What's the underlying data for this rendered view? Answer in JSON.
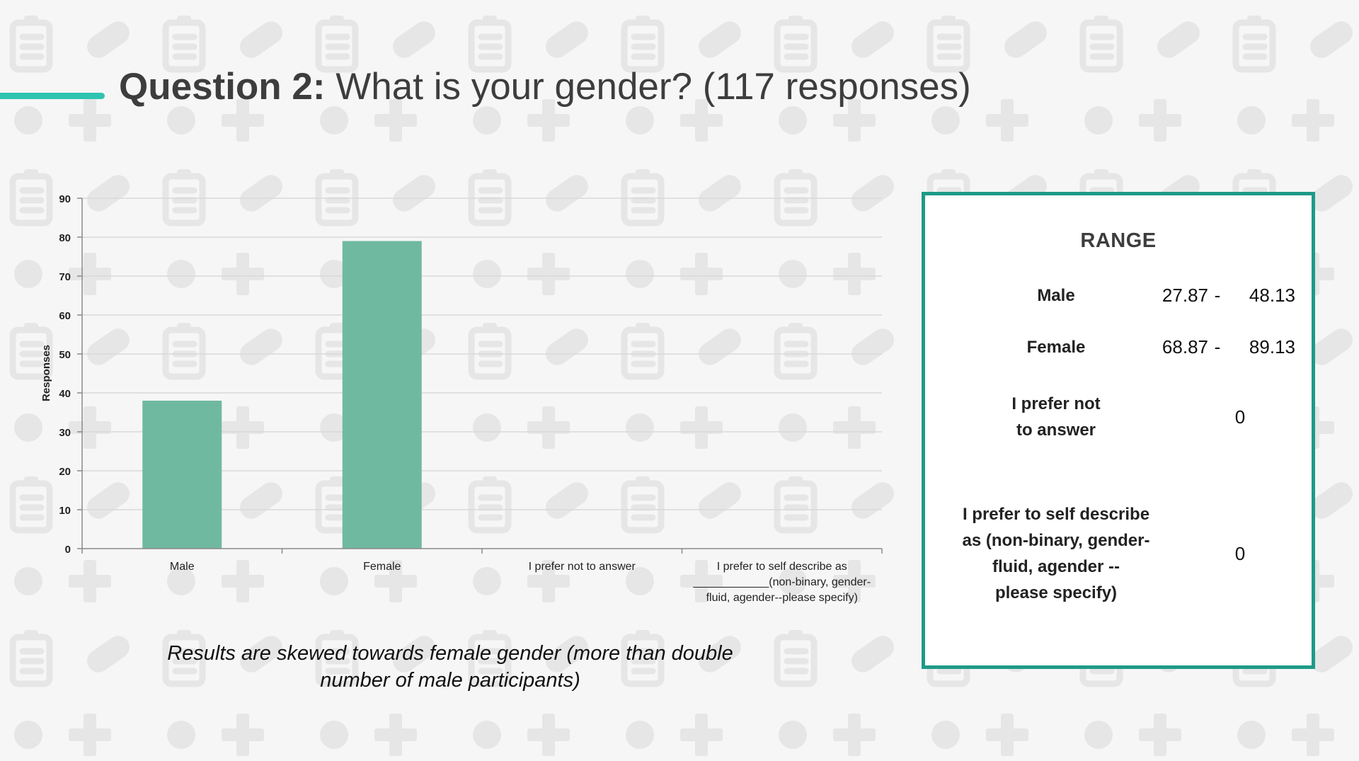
{
  "colors": {
    "accent": "#2ec4b0",
    "bar": "#70b9a1",
    "box_border": "#1e9a88",
    "pattern": "#e6e6e6"
  },
  "slide": {
    "title_label": "Question 2:",
    "title_text": "What is your gender? (117 responses)",
    "caption": "Results are skewed towards female gender (more than double number of male participants)"
  },
  "chart_data": {
    "type": "bar",
    "categories": [
      "Male",
      "Female",
      "I prefer not to answer",
      "I prefer to self describe as ____________(non-binary, gender-fluid, agender--please specify)"
    ],
    "category_lines": [
      [
        "Male"
      ],
      [
        "Female"
      ],
      [
        "I prefer not to answer"
      ],
      [
        "I prefer to self describe as",
        "____________(non-binary, gender-",
        "fluid, agender--please specify)"
      ]
    ],
    "values": [
      38,
      79,
      0,
      0
    ],
    "ylabel": "Responses",
    "ylim": [
      0,
      90
    ],
    "yticks": [
      0,
      10,
      20,
      30,
      40,
      50,
      60,
      70,
      80,
      90
    ],
    "grid": true
  },
  "range_box": {
    "title": "RANGE",
    "rows": [
      {
        "label_lines": [
          "Male"
        ],
        "min": "27.87",
        "dash": "-",
        "max": "48.13"
      },
      {
        "label_lines": [
          "Female"
        ],
        "min": "68.87",
        "dash": "-",
        "max": "89.13"
      },
      {
        "label_lines": [
          "I prefer not",
          "to answer"
        ],
        "value": "0"
      },
      {
        "label_lines": [
          "I prefer to self describe",
          "as (non-binary, gender-",
          "fluid, agender --",
          "please specify)"
        ],
        "value": "0"
      }
    ]
  }
}
